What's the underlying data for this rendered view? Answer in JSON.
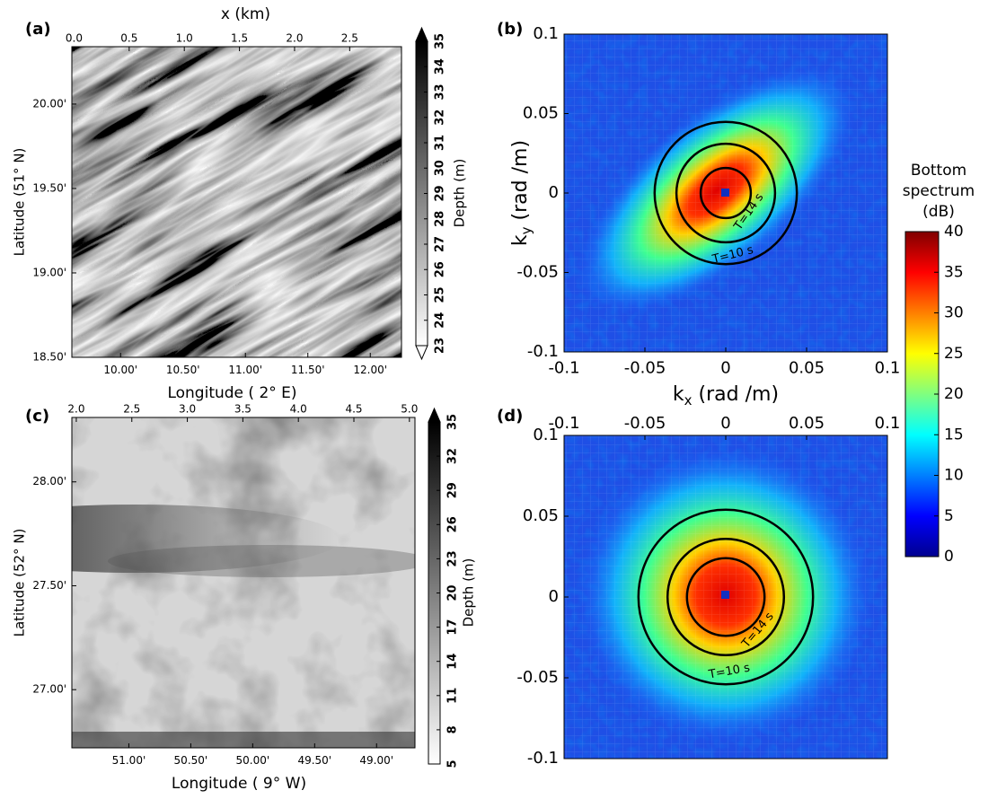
{
  "chart_data": [
    {
      "type": "image",
      "panel_label": "(a)",
      "xlabel": "Longitude (  2° E)",
      "ylabel": "Latitude (51° N)",
      "x2label": "x (km)",
      "xlim": [
        9.61,
        12.25
      ],
      "xticks": [
        {
          "value": 10,
          "label": "10.00'"
        },
        {
          "value": 10.5,
          "label": "10.50'"
        },
        {
          "value": 11,
          "label": "11.00'"
        },
        {
          "value": 11.5,
          "label": "11.50'"
        },
        {
          "value": 12,
          "label": "12.00'"
        }
      ],
      "x2lim": [
        -0.02,
        2.97
      ],
      "x2ticks": [
        {
          "value": 0,
          "label": "0.0"
        },
        0.5,
        {
          "value": 1,
          "label": "1.0"
        },
        1.5,
        {
          "value": 2,
          "label": "2.0"
        },
        2.5
      ],
      "ylim": [
        18.5,
        20.34
      ],
      "yticks": [
        {
          "value": 20,
          "label": "20.00'"
        },
        {
          "value": 19.5,
          "label": "19.50'"
        },
        {
          "value": 19,
          "label": "19.00'"
        },
        {
          "value": 18.5,
          "label": "18.50'"
        }
      ],
      "colorbar": {
        "label": "Depth (m)",
        "lim": [
          23,
          35
        ],
        "ticks": [
          23,
          24,
          25,
          26,
          27,
          28,
          29,
          30,
          31,
          32,
          33,
          34,
          35
        ],
        "colormap": "gray"
      }
    },
    {
      "type": "heatmap",
      "panel_label": "(b)",
      "xlabel": {
        "base": "k",
        "sub": "x",
        "unit": " (rad /m)"
      },
      "ylabel": {
        "base": "k",
        "sub": "y",
        "unit": " (rad /m)"
      },
      "xlim": [
        -0.1,
        0.1
      ],
      "xticks": [
        -0.1,
        -0.05,
        0,
        0.05,
        0.1
      ],
      "ylim": [
        -0.1,
        0.1
      ],
      "yticks": [
        -0.1,
        -0.05,
        0,
        0.05,
        0.1
      ],
      "circles": [
        0.0155,
        0.0305,
        0.044
      ],
      "annotations": [
        "T=14 s",
        "T=10 s"
      ],
      "colorbar": {
        "title": [
          "Bottom",
          "spectrum",
          "(dB)"
        ],
        "lim": [
          0,
          40
        ],
        "ticks": [
          0,
          5,
          10,
          15,
          20,
          25,
          30,
          35,
          40
        ],
        "colormap": "jet"
      }
    },
    {
      "type": "image",
      "panel_label": "(c)",
      "xlabel": "Longitude (  9° W)",
      "ylabel": "Latitude (52° N)",
      "xlim": [
        51.46,
        48.69
      ],
      "xticks": [
        {
          "value": 51,
          "label": "51.00'"
        },
        {
          "value": 50.5,
          "label": "50.50'"
        },
        {
          "value": 50,
          "label": "50.00'"
        },
        {
          "value": 49.5,
          "label": "49.50'"
        },
        {
          "value": 49,
          "label": "49.00'"
        }
      ],
      "x2lim": [
        1.96,
        5.05
      ],
      "x2ticks": [
        {
          "value": 2,
          "label": "2.0"
        },
        2.5,
        {
          "value": 3,
          "label": "3.0"
        },
        3.5,
        {
          "value": 4,
          "label": "4.0"
        },
        4.5,
        {
          "value": 5,
          "label": "5.0"
        }
      ],
      "ylim": [
        26.72,
        28.31
      ],
      "yticks": [
        {
          "value": 28,
          "label": "28.00'"
        },
        {
          "value": 27.5,
          "label": "27.50'"
        },
        {
          "value": 27,
          "label": "27.00'"
        }
      ],
      "colorbar": {
        "label": "Depth (m)",
        "lim": [
          5,
          35
        ],
        "ticks": [
          35,
          32,
          29,
          26,
          23,
          20,
          17,
          14,
          11,
          8,
          5
        ],
        "colormap": "gray"
      }
    },
    {
      "type": "heatmap",
      "panel_label": "(d)",
      "x2lim": [
        -0.1,
        0.1
      ],
      "x2ticks": [
        -0.1,
        -0.05,
        0,
        0.05,
        0.1
      ],
      "ylim": [
        -0.1,
        0.1
      ],
      "yticks": [
        -0.1,
        -0.05,
        0,
        0.05,
        0.1
      ],
      "circles": [
        0.024,
        0.036,
        0.054
      ],
      "annotations": [
        "T=14 s",
        "T=10 s"
      ]
    }
  ]
}
